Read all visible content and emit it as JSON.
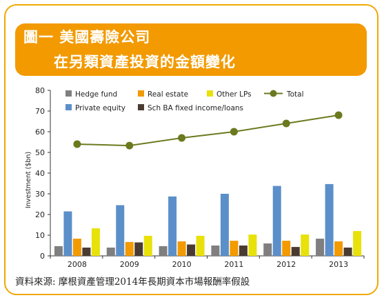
{
  "title": {
    "line1": "圖一 美國壽險公司",
    "line2": "在另類資產投資的金額變化"
  },
  "source": "資料來源: 摩根資產管理2014年長期資本市場報酬率假設",
  "chart_data": {
    "type": "bar",
    "categories": [
      "2008",
      "2009",
      "2010",
      "2011",
      "2012",
      "2013"
    ],
    "ylabel": "Investment ($bn)",
    "ylim": [
      0,
      80
    ],
    "yticks": [
      0,
      10,
      20,
      30,
      40,
      50,
      60,
      70,
      80
    ],
    "grid": false,
    "legend": "top",
    "series": [
      {
        "name": "Hedge fund",
        "color": "#7f7f7f",
        "values": [
          4.7,
          4.0,
          4.7,
          5.0,
          6.0,
          8.3
        ]
      },
      {
        "name": "Private equity",
        "color": "#5b8fc9",
        "values": [
          21.5,
          24.5,
          28.7,
          30.0,
          33.8,
          34.7
        ]
      },
      {
        "name": "Real estate",
        "color": "#f29a00",
        "values": [
          8.3,
          6.7,
          7.0,
          7.3,
          7.3,
          7.0
        ]
      },
      {
        "name": "Sch BA fixed income/loans",
        "color": "#4a3b32",
        "values": [
          4.0,
          6.5,
          5.5,
          5.0,
          4.3,
          4.0
        ]
      },
      {
        "name": "Other LPs",
        "color": "#e8e10a",
        "values": [
          13.3,
          9.7,
          9.7,
          10.3,
          10.3,
          12.0
        ]
      }
    ],
    "line_series": {
      "name": "Total",
      "color": "#6b7a1e",
      "values": [
        54.0,
        53.3,
        57.0,
        60.0,
        64.0,
        68.0
      ]
    }
  }
}
